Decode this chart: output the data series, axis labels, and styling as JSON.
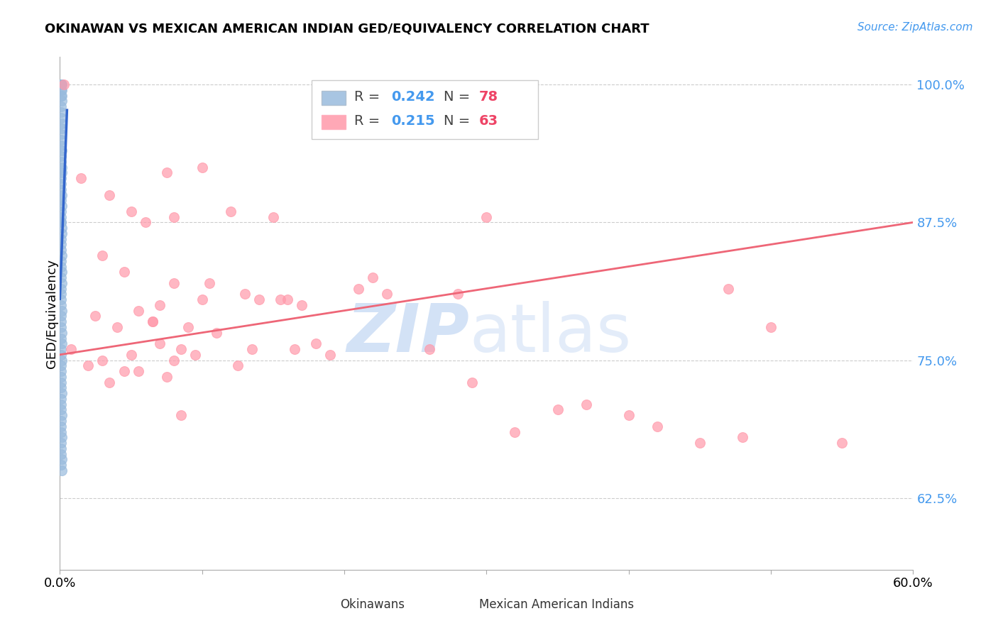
{
  "title": "OKINAWAN VS MEXICAN AMERICAN INDIAN GED/EQUIVALENCY CORRELATION CHART",
  "source": "Source: ZipAtlas.com",
  "ylabel": "GED/Equivalency",
  "xmin": 0.0,
  "xmax": 60.0,
  "ymin": 56.0,
  "ymax": 102.5,
  "yticks": [
    62.5,
    75.0,
    87.5,
    100.0
  ],
  "ytick_labels": [
    "62.5%",
    "75.0%",
    "87.5%",
    "100.0%"
  ],
  "xticks": [
    0.0,
    10.0,
    20.0,
    30.0,
    40.0,
    50.0,
    60.0
  ],
  "xtick_labels": [
    "0.0%",
    "",
    "",
    "",
    "",
    "",
    "60.0%"
  ],
  "blue_color": "#99BBDD",
  "pink_color": "#FF99AA",
  "blue_line_color": "#3366CC",
  "pink_line_color": "#EE6677",
  "blue_r": 0.242,
  "blue_n": 78,
  "pink_r": 0.215,
  "pink_n": 63,
  "r_color": "#4499EE",
  "n_color": "#EE4466",
  "grid_color": "#CCCCCC",
  "title_fontsize": 13,
  "source_fontsize": 11,
  "tick_fontsize": 13,
  "legend_fontsize": 14,
  "okinawan_x": [
    0.05,
    0.08,
    0.1,
    0.12,
    0.13,
    0.15,
    0.08,
    0.1,
    0.11,
    0.12,
    0.06,
    0.07,
    0.09,
    0.11,
    0.13,
    0.1,
    0.08,
    0.07,
    0.12,
    0.1,
    0.09,
    0.11,
    0.13,
    0.1,
    0.08,
    0.09,
    0.11,
    0.1,
    0.12,
    0.08,
    0.07,
    0.09,
    0.1,
    0.11,
    0.12,
    0.08,
    0.1,
    0.09,
    0.11,
    0.08,
    0.1,
    0.12,
    0.09,
    0.11,
    0.08,
    0.1,
    0.07,
    0.09,
    0.11,
    0.1,
    0.08,
    0.09,
    0.11,
    0.1,
    0.12,
    0.08,
    0.09,
    0.11,
    0.1,
    0.08,
    0.07,
    0.09,
    0.1,
    0.11,
    0.08,
    0.1,
    0.09,
    0.11,
    0.08,
    0.1,
    0.09,
    0.11,
    0.1,
    0.08,
    0.09,
    0.11,
    0.1,
    0.12
  ],
  "okinawan_y": [
    100.0,
    100.0,
    100.0,
    99.5,
    100.0,
    100.0,
    99.0,
    99.5,
    99.0,
    98.5,
    98.0,
    97.5,
    97.0,
    96.5,
    96.0,
    95.5,
    95.0,
    94.5,
    94.0,
    93.5,
    93.0,
    92.5,
    92.0,
    91.5,
    91.0,
    90.5,
    90.0,
    89.5,
    89.0,
    88.5,
    88.0,
    87.5,
    87.5,
    87.0,
    86.5,
    86.0,
    85.5,
    85.0,
    84.5,
    84.0,
    83.5,
    83.0,
    82.5,
    82.0,
    81.5,
    81.0,
    80.5,
    80.0,
    79.5,
    79.0,
    78.5,
    78.0,
    77.5,
    77.0,
    76.5,
    76.0,
    75.5,
    75.0,
    74.5,
    74.0,
    73.5,
    73.0,
    72.5,
    72.0,
    71.5,
    71.0,
    70.5,
    70.0,
    69.5,
    69.0,
    68.5,
    68.0,
    67.5,
    67.0,
    66.5,
    66.0,
    65.5,
    65.0
  ],
  "mexican_x": [
    0.3,
    1.5,
    3.5,
    5.0,
    7.5,
    10.0,
    12.0,
    15.0,
    8.0,
    6.0,
    3.0,
    4.5,
    8.0,
    10.5,
    13.0,
    16.0,
    7.0,
    5.5,
    22.0,
    28.0,
    2.5,
    6.5,
    9.0,
    11.0,
    14.0,
    17.0,
    6.5,
    4.0,
    18.0,
    30.0,
    7.0,
    8.5,
    9.5,
    13.5,
    15.5,
    5.0,
    3.0,
    19.0,
    35.0,
    2.0,
    5.5,
    7.5,
    10.0,
    12.5,
    16.5,
    8.0,
    4.5,
    21.0,
    45.0,
    48.0,
    23.0,
    26.0,
    29.0,
    32.0,
    37.0,
    42.0,
    50.0,
    3.5,
    8.5,
    47.0,
    0.8,
    55.0,
    40.0
  ],
  "mexican_y": [
    100.0,
    91.5,
    90.0,
    88.5,
    92.0,
    92.5,
    88.5,
    88.0,
    88.0,
    87.5,
    84.5,
    83.0,
    82.0,
    82.0,
    81.0,
    80.5,
    80.0,
    79.5,
    82.5,
    81.0,
    79.0,
    78.5,
    78.0,
    77.5,
    80.5,
    80.0,
    78.5,
    78.0,
    76.5,
    88.0,
    76.5,
    76.0,
    75.5,
    76.0,
    80.5,
    75.5,
    75.0,
    75.5,
    70.5,
    74.5,
    74.0,
    73.5,
    80.5,
    74.5,
    76.0,
    75.0,
    74.0,
    81.5,
    67.5,
    68.0,
    81.0,
    76.0,
    73.0,
    68.5,
    71.0,
    69.0,
    78.0,
    73.0,
    70.0,
    81.5,
    76.0,
    67.5,
    70.0
  ]
}
